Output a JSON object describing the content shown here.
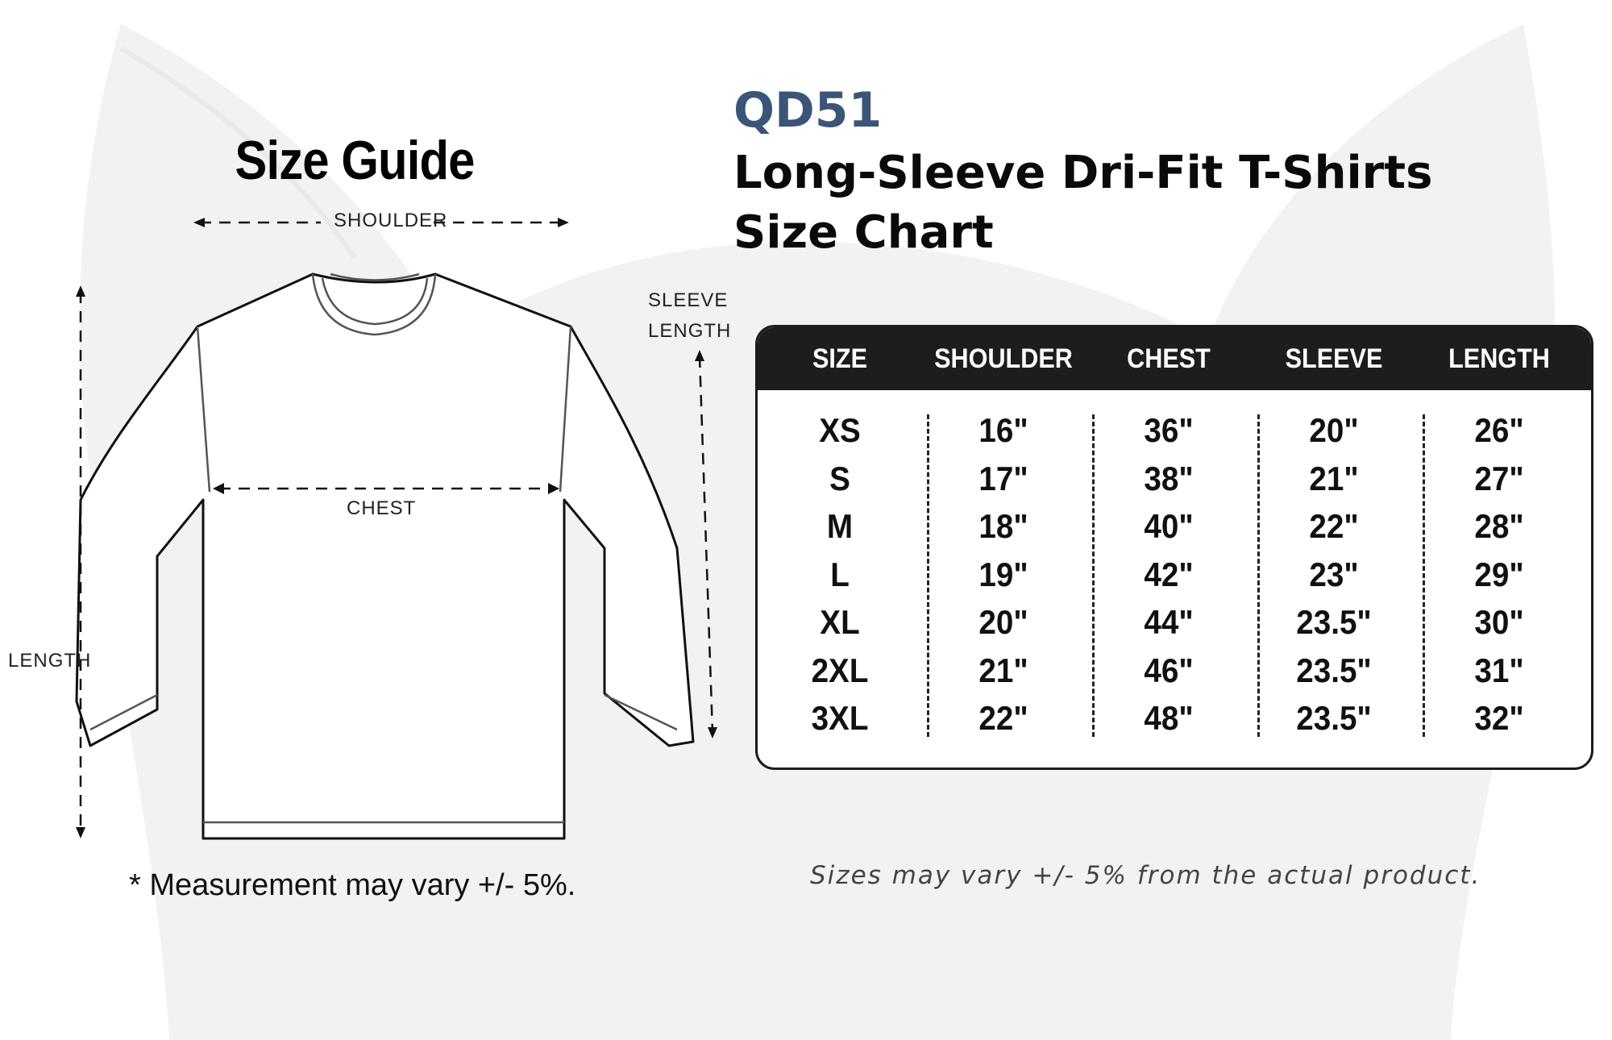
{
  "guide": {
    "title": "Size Guide",
    "labels": {
      "shoulder": "SHOULDER",
      "chest": "CHEST",
      "length": "LENGTH",
      "sleeve_line1": "SLEEVE",
      "sleeve_line2": "LENGTH"
    },
    "note": "* Measurement may vary +/- 5%."
  },
  "product": {
    "code": "QD51",
    "title_line1": "Long-Sleeve Dri-Fit T-Shirts",
    "title_line2": "Size Chart"
  },
  "size_table": {
    "headers": [
      "SIZE",
      "SHOULDER",
      "CHEST",
      "SLEEVE",
      "LENGTH"
    ],
    "rows": [
      [
        "XS",
        "16\"",
        "36\"",
        "20\"",
        "26\""
      ],
      [
        "S",
        "17\"",
        "38\"",
        "21\"",
        "27\""
      ],
      [
        "M",
        "18\"",
        "40\"",
        "22\"",
        "28\""
      ],
      [
        "L",
        "19\"",
        "42\"",
        "23\"",
        "29\""
      ],
      [
        "XL",
        "20\"",
        "44\"",
        "23.5\"",
        "30\""
      ],
      [
        "2XL",
        "21\"",
        "46\"",
        "23.5\"",
        "31\""
      ],
      [
        "3XL",
        "22\"",
        "48\"",
        "23.5\"",
        "32\""
      ]
    ]
  },
  "footer_note": "Sizes may vary +/- 5% from the actual product.",
  "colors": {
    "product_code": "#3a5577",
    "table_header_bg": "#1d1d1d",
    "watermark": "#f2f2f2"
  }
}
